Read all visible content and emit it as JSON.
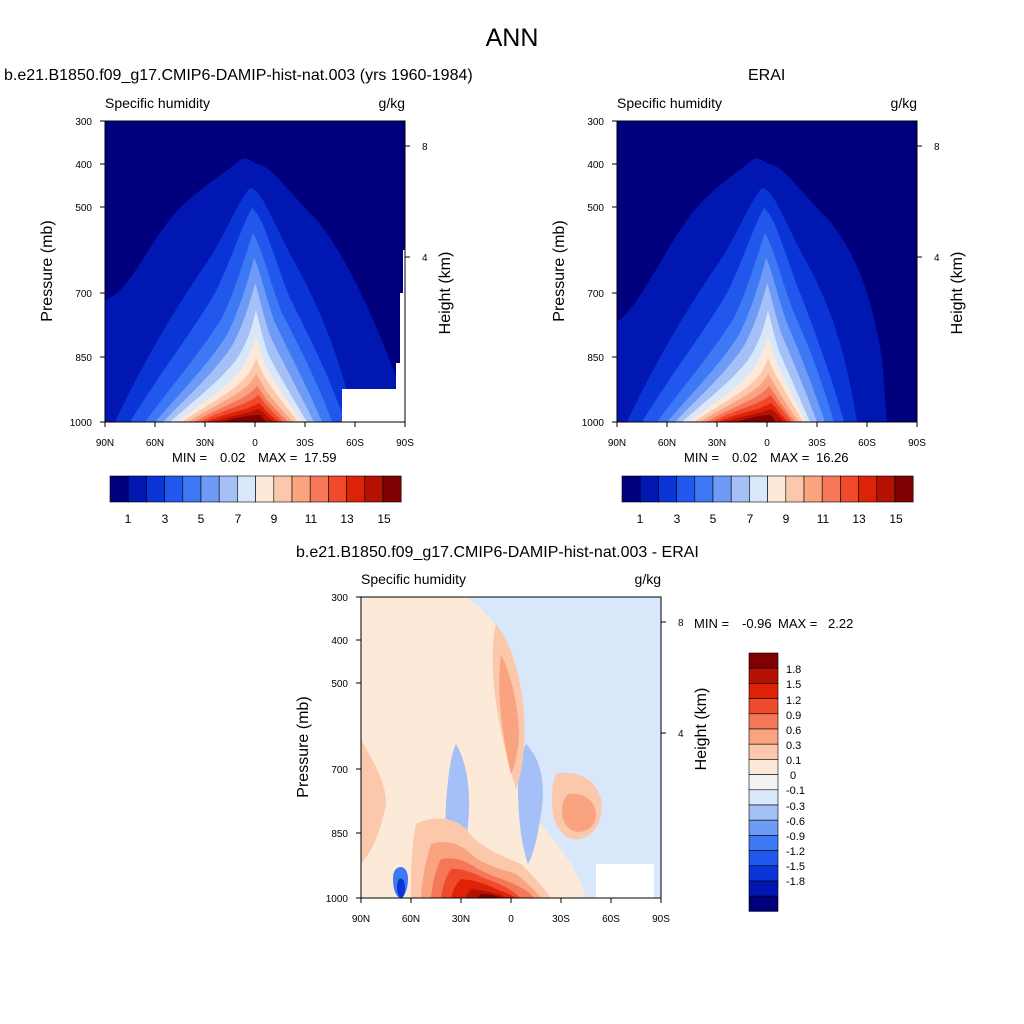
{
  "page_title": "ANN",
  "colors": {
    "abs_levels": [
      "#00007f",
      "#0017b2",
      "#0b34d6",
      "#2257ee",
      "#3d79f4",
      "#6e9bf6",
      "#a4c0f7",
      "#d9e7fb",
      "#fde9d8",
      "#fcc8ac",
      "#f9a381",
      "#f5775a",
      "#ef4a2c",
      "#dd2207",
      "#b41203",
      "#7f0000"
    ],
    "diff_levels": [
      "#00007f",
      "#0017b2",
      "#0b34d6",
      "#2257ee",
      "#3d79f4",
      "#6e9bf6",
      "#a4c0f7",
      "#d9e7fb",
      "#f2f2f2",
      "#fde9d8",
      "#fcc8ac",
      "#f9a381",
      "#f5775a",
      "#ef4a2c",
      "#dd2207",
      "#b41203",
      "#7f0000"
    ]
  },
  "chart_data": [
    {
      "type": "heatmap",
      "title": "b.e21.B1850.f09_g17.CMIP6-DAMIP-hist-nat.003 (yrs 1960-1984)",
      "left_label": "Specific humidity",
      "right_label": "g/kg",
      "xlabel": "",
      "ylabel": "Pressure (mb)",
      "ylabel_right": "Height (km)",
      "x_ticks": [
        "90N",
        "60N",
        "30N",
        "0",
        "30S",
        "60S",
        "90S"
      ],
      "y_ticks": [
        "300",
        "400",
        "500",
        "700",
        "850",
        "1000"
      ],
      "y_ticks_right": [
        "8",
        "4"
      ],
      "xlim": [
        90,
        -90
      ],
      "ylim": [
        1000,
        300
      ],
      "min_label": "MIN =",
      "min_value": "0.02",
      "max_label": "MAX =",
      "max_value": "17.59",
      "colorbar_labels": [
        "1",
        "3",
        "5",
        "7",
        "9",
        "11",
        "13",
        "15"
      ],
      "field": {
        "peak_lat": 0,
        "peak_value": 17.59,
        "min_value": 0.02
      }
    },
    {
      "type": "heatmap",
      "title": "ERAI",
      "left_label": "Specific humidity",
      "right_label": "g/kg",
      "xlabel": "",
      "ylabel": "Pressure (mb)",
      "ylabel_right": "Height (km)",
      "x_ticks": [
        "90N",
        "60N",
        "30N",
        "0",
        "30S",
        "60S",
        "90S"
      ],
      "y_ticks": [
        "300",
        "400",
        "500",
        "700",
        "850",
        "1000"
      ],
      "y_ticks_right": [
        "8",
        "4"
      ],
      "xlim": [
        90,
        -90
      ],
      "ylim": [
        1000,
        300
      ],
      "min_label": "MIN =",
      "min_value": "0.02",
      "max_label": "MAX =",
      "max_value": "16.26",
      "colorbar_labels": [
        "1",
        "3",
        "5",
        "7",
        "9",
        "11",
        "13",
        "15"
      ],
      "field": {
        "peak_lat": 0,
        "peak_value": 16.26,
        "min_value": 0.02
      }
    },
    {
      "type": "heatmap",
      "title": "b.e21.B1850.f09_g17.CMIP6-DAMIP-hist-nat.003 - ERAI",
      "left_label": "Specific humidity",
      "right_label": "g/kg",
      "xlabel": "",
      "ylabel": "Pressure (mb)",
      "ylabel_right": "Height (km)",
      "x_ticks": [
        "90N",
        "60N",
        "30N",
        "0",
        "30S",
        "60S",
        "90S"
      ],
      "y_ticks": [
        "300",
        "400",
        "500",
        "700",
        "850",
        "1000"
      ],
      "y_ticks_right": [
        "8",
        "4"
      ],
      "xlim": [
        90,
        -90
      ],
      "ylim": [
        1000,
        300
      ],
      "min_label": "MIN =",
      "min_value": "-0.96",
      "max_label": "MAX =",
      "max_value": "2.22",
      "colorbar_labels": [
        "1.8",
        "1.5",
        "1.2",
        "0.9",
        "0.6",
        "0.3",
        "0.1",
        "0",
        "-0.1",
        "-0.3",
        "-0.6",
        "-0.9",
        "-1.2",
        "-1.5",
        "-1.8"
      ]
    }
  ]
}
